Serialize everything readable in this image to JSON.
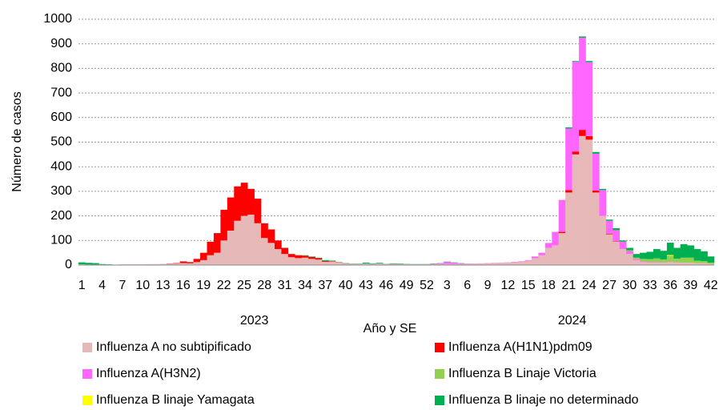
{
  "chart_data": {
    "type": "stacked_bar",
    "y_label": "Número de casos",
    "x_label": "Año y SE",
    "groups": [
      "2023",
      "2024"
    ],
    "categories": [
      "1",
      null,
      null,
      "4",
      null,
      null,
      "7",
      null,
      null,
      "10",
      null,
      null,
      "13",
      null,
      null,
      "16",
      null,
      null,
      "19",
      null,
      null,
      "22",
      null,
      null,
      "25",
      null,
      null,
      "28",
      null,
      null,
      "31",
      null,
      null,
      "34",
      null,
      null,
      "37",
      null,
      null,
      "40",
      null,
      null,
      "43",
      null,
      null,
      "46",
      null,
      null,
      "49",
      null,
      null,
      "52",
      null,
      null,
      "3",
      null,
      null,
      "6",
      null,
      null,
      "9",
      null,
      null,
      "12",
      null,
      null,
      "15",
      null,
      null,
      "18",
      null,
      null,
      "21",
      null,
      null,
      "24",
      null,
      null,
      "27",
      null,
      null,
      "30",
      null,
      null,
      "33",
      null,
      null,
      "36",
      null,
      null,
      "39",
      null,
      null,
      "42"
    ],
    "ylim": [
      0,
      1000
    ],
    "yticks": [
      0,
      100,
      200,
      300,
      400,
      500,
      600,
      700,
      800,
      900,
      1000
    ],
    "grid": true,
    "series": [
      {
        "name": "Influenza A no subtipificado",
        "color": "#e6b9b8",
        "values": [
          3,
          2,
          2,
          2,
          2,
          2,
          3,
          3,
          3,
          3,
          4,
          4,
          5,
          5,
          6,
          8,
          7,
          12,
          20,
          40,
          50,
          100,
          140,
          180,
          200,
          205,
          170,
          110,
          90,
          65,
          45,
          32,
          28,
          30,
          25,
          22,
          13,
          14,
          10,
          6,
          5,
          5,
          6,
          5,
          6,
          4,
          5,
          4,
          4,
          3,
          3,
          3,
          3,
          4,
          5,
          5,
          4,
          4,
          5,
          6,
          7,
          8,
          9,
          10,
          11,
          13,
          17,
          28,
          40,
          70,
          80,
          130,
          295,
          450,
          525,
          510,
          295,
          200,
          125,
          95,
          65,
          45,
          20,
          12,
          10,
          10,
          10,
          12,
          10,
          10,
          10,
          8,
          8,
          5
        ]
      },
      {
        "name": "Influenza A(H1N1)pdm09",
        "color": "#ff0000",
        "values": [
          0,
          0,
          0,
          0,
          0,
          0,
          0,
          0,
          0,
          0,
          0,
          0,
          0,
          1,
          2,
          7,
          5,
          13,
          30,
          55,
          80,
          125,
          135,
          140,
          135,
          105,
          100,
          60,
          55,
          35,
          25,
          13,
          12,
          8,
          8,
          6,
          3,
          2,
          1,
          1,
          0,
          0,
          0,
          0,
          0,
          0,
          0,
          0,
          0,
          0,
          0,
          0,
          0,
          0,
          0,
          0,
          0,
          0,
          0,
          0,
          0,
          0,
          0,
          0,
          0,
          0,
          0,
          0,
          0,
          0,
          0,
          5,
          10,
          12,
          25,
          15,
          8,
          0,
          3,
          2,
          0,
          0,
          0,
          0,
          0,
          0,
          0,
          0,
          0,
          0,
          0,
          0,
          0,
          0
        ]
      },
      {
        "name": "Influenza A(H3N2)",
        "color": "#ff66ff",
        "values": [
          0,
          0,
          0,
          0,
          0,
          0,
          0,
          0,
          0,
          0,
          0,
          0,
          0,
          0,
          0,
          0,
          0,
          0,
          0,
          0,
          0,
          0,
          0,
          0,
          0,
          0,
          0,
          0,
          0,
          0,
          0,
          0,
          0,
          0,
          0,
          0,
          0,
          0,
          0,
          0,
          0,
          0,
          0,
          0,
          0,
          0,
          0,
          0,
          0,
          0,
          0,
          0,
          2,
          3,
          8,
          5,
          3,
          2,
          1,
          1,
          1,
          1,
          1,
          1,
          2,
          2,
          3,
          7,
          10,
          20,
          55,
          130,
          250,
          365,
          375,
          300,
          150,
          105,
          52,
          45,
          30,
          12,
          5,
          3,
          2,
          2,
          1,
          1,
          1,
          0,
          0,
          0,
          0,
          0
        ]
      },
      {
        "name": "Influenza B Linaje Victoria",
        "color": "#92d050",
        "values": [
          0,
          0,
          0,
          0,
          0,
          0,
          0,
          0,
          0,
          0,
          0,
          0,
          0,
          0,
          0,
          0,
          0,
          0,
          0,
          0,
          0,
          0,
          0,
          0,
          0,
          0,
          0,
          0,
          0,
          0,
          0,
          0,
          0,
          0,
          0,
          0,
          0,
          0,
          0,
          0,
          0,
          0,
          0,
          0,
          0,
          0,
          0,
          0,
          0,
          0,
          0,
          0,
          0,
          0,
          0,
          0,
          0,
          0,
          0,
          0,
          0,
          0,
          0,
          0,
          0,
          0,
          0,
          0,
          0,
          0,
          0,
          0,
          0,
          0,
          0,
          0,
          0,
          0,
          0,
          0,
          0,
          3,
          5,
          10,
          12,
          15,
          12,
          25,
          15,
          20,
          20,
          10,
          8,
          5
        ]
      },
      {
        "name": "Influenza B linaje Yamagata",
        "color": "#ffff00",
        "values": [
          0,
          0,
          0,
          0,
          0,
          0,
          0,
          0,
          0,
          0,
          0,
          0,
          0,
          0,
          0,
          0,
          0,
          0,
          0,
          0,
          0,
          0,
          0,
          0,
          0,
          0,
          0,
          0,
          0,
          0,
          0,
          0,
          0,
          0,
          0,
          0,
          0,
          0,
          0,
          0,
          0,
          0,
          0,
          0,
          0,
          0,
          0,
          0,
          0,
          0,
          0,
          0,
          0,
          0,
          0,
          0,
          0,
          0,
          0,
          0,
          0,
          0,
          0,
          0,
          0,
          0,
          0,
          0,
          0,
          0,
          0,
          0,
          0,
          0,
          0,
          0,
          0,
          0,
          0,
          0,
          0,
          0,
          0,
          0,
          0,
          0,
          0,
          3,
          0,
          0,
          0,
          0,
          0,
          0
        ]
      },
      {
        "name": "Influenza B linaje no determinado",
        "color": "#00b050",
        "values": [
          8,
          7,
          6,
          2,
          1,
          0,
          0,
          0,
          0,
          0,
          0,
          0,
          0,
          0,
          0,
          0,
          0,
          0,
          0,
          0,
          0,
          0,
          0,
          0,
          0,
          0,
          0,
          0,
          0,
          0,
          0,
          0,
          0,
          2,
          2,
          2,
          4,
          2,
          1,
          1,
          1,
          1,
          4,
          2,
          3,
          1,
          2,
          2,
          1,
          1,
          1,
          1,
          1,
          1,
          1,
          1,
          1,
          0,
          0,
          0,
          0,
          0,
          0,
          0,
          0,
          0,
          0,
          0,
          0,
          0,
          0,
          0,
          5,
          3,
          5,
          5,
          7,
          5,
          5,
          8,
          5,
          10,
          15,
          25,
          30,
          38,
          35,
          50,
          44,
          55,
          50,
          47,
          40,
          25
        ]
      }
    ]
  }
}
